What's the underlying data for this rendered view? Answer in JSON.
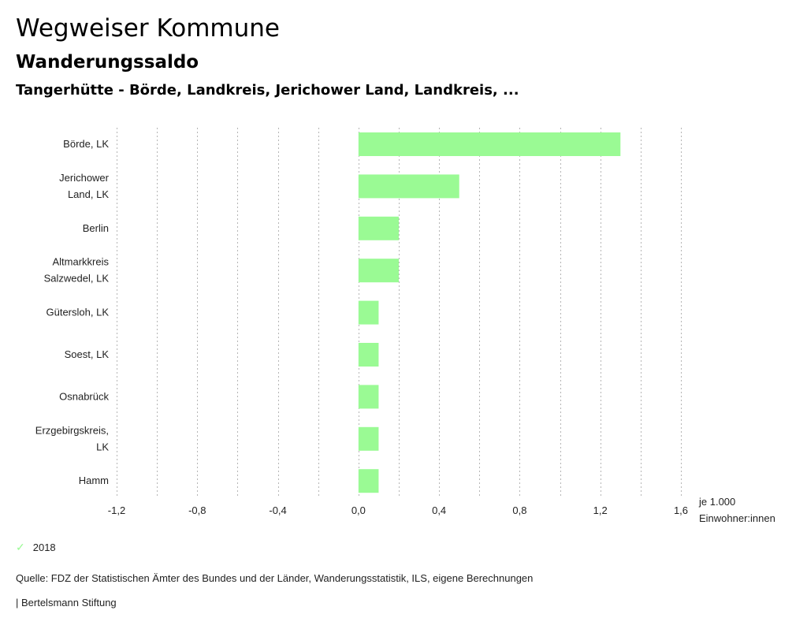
{
  "header": {
    "title": "Wegweiser Kommune",
    "subtitle": "Wanderungssaldo",
    "region": "Tangerhütte - Börde, Landkreis, Jerichower Land, Landkreis, ..."
  },
  "chart_data": {
    "type": "bar",
    "orientation": "horizontal",
    "title": "Wanderungssaldo",
    "categories": [
      [
        "Börde, LK"
      ],
      [
        "Jerichower",
        "Land, LK"
      ],
      [
        "Berlin"
      ],
      [
        "Altmarkkreis",
        "Salzwedel, LK"
      ],
      [
        "Gütersloh, LK"
      ],
      [
        "Soest, LK"
      ],
      [
        "Osnabrück"
      ],
      [
        "Erzgebirgskreis,",
        "LK"
      ],
      [
        "Hamm"
      ]
    ],
    "series": [
      {
        "name": "2018",
        "color": "#9afa94",
        "values": [
          1.3,
          0.5,
          0.2,
          0.2,
          0.1,
          0.1,
          0.1,
          0.1,
          0.1
        ]
      }
    ],
    "xlim": [
      -1.2,
      1.6
    ],
    "xticks": [
      -1.2,
      -1.0,
      -0.8,
      -0.6,
      -0.4,
      -0.2,
      0.0,
      0.2,
      0.4,
      0.6,
      0.8,
      1.0,
      1.2,
      1.4,
      1.6
    ],
    "xtick_labels": [
      {
        "value": -1.2,
        "label": "-1,2"
      },
      {
        "value": -0.8,
        "label": "-0,8"
      },
      {
        "value": -0.4,
        "label": "-0,4"
      },
      {
        "value": 0.0,
        "label": "0,0"
      },
      {
        "value": 0.4,
        "label": "0,4"
      },
      {
        "value": 0.8,
        "label": "0,8"
      },
      {
        "value": 1.2,
        "label": "1,2"
      },
      {
        "value": 1.6,
        "label": "1,6"
      }
    ],
    "xlabel": [
      "je 1.000",
      "Einwohner:innen"
    ],
    "grid": "vertical dashed",
    "legend_position": "bottom-left"
  },
  "legend": {
    "items": [
      {
        "label": "2018",
        "icon": "check-icon",
        "color": "#9afa94"
      }
    ]
  },
  "footer": {
    "source": "Quelle: FDZ der Statistischen Ämter des Bundes und der Länder, Wanderungsstatistik, ILS, eigene Berechnungen",
    "credit": "| Bertelsmann Stiftung"
  }
}
